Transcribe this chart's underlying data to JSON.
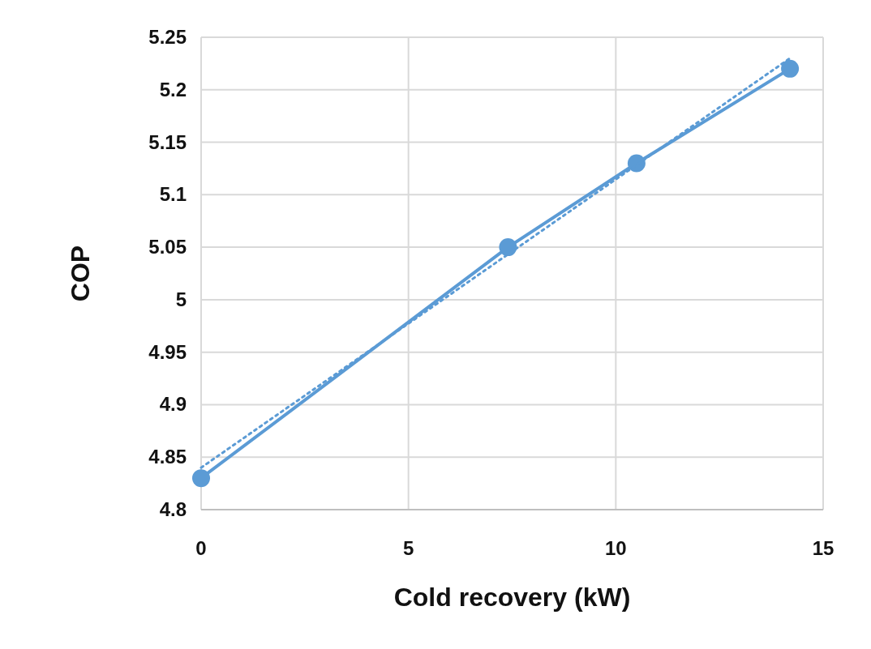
{
  "chart_data": {
    "type": "line",
    "xlabel": "Cold recovery (kW)",
    "ylabel": "COP",
    "xlim": [
      0,
      15
    ],
    "xticks": [
      0,
      5,
      10,
      15
    ],
    "ylim": [
      4.8,
      5.25
    ],
    "yticks": [
      4.8,
      4.85,
      4.9,
      4.95,
      5,
      5.05,
      5.1,
      5.15,
      5.2,
      5.25
    ],
    "grid": true,
    "series": [
      {
        "x": [
          0,
          7.4,
          10.5,
          14.2
        ],
        "values": [
          4.83,
          5.05,
          5.13,
          5.22
        ],
        "color": "#5b9bd5",
        "marker": "circle",
        "line_style": "solid"
      },
      {
        "type": "line",
        "x": [
          0,
          14.2
        ],
        "values": [
          4.84,
          5.23
        ],
        "color": "#5b9bd5",
        "marker": "none",
        "line_style": "dotted"
      }
    ]
  }
}
